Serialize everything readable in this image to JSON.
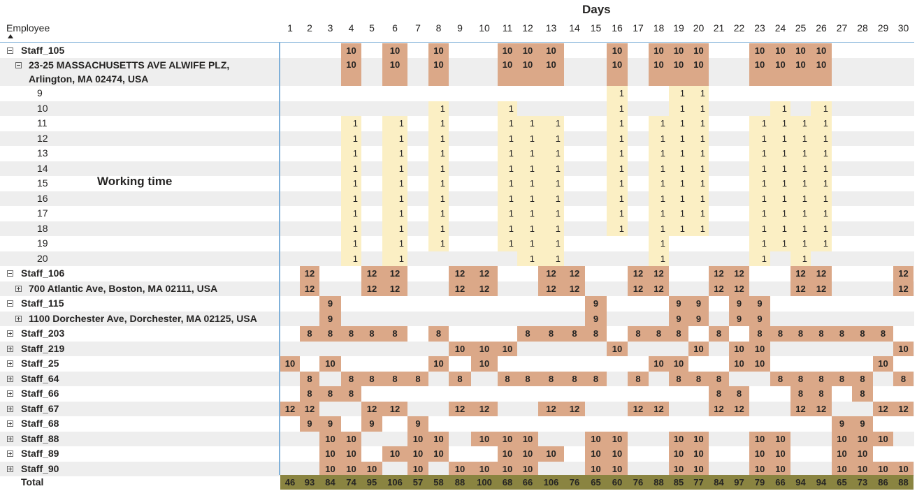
{
  "title": "Days",
  "employee_header": "Employee",
  "annotation": "Working time",
  "days": [
    "1",
    "2",
    "3",
    "4",
    "5",
    "6",
    "7",
    "8",
    "9",
    "10",
    "11",
    "12",
    "13",
    "14",
    "15",
    "16",
    "17",
    "18",
    "19",
    "20",
    "21",
    "22",
    "23",
    "24",
    "25",
    "26",
    "27",
    "28",
    "29",
    "30"
  ],
  "colors": {
    "hours_cell": "#dba888",
    "hour_mark_cell": "#fbefc4",
    "total_cell": "#8a8441",
    "header_line": "#7fb0d9",
    "row_shade": "#eeeeee"
  },
  "rows": [
    {
      "label": "Staff_105",
      "level": 0,
      "toggle": "minus",
      "bold": true,
      "style": "big",
      "values": {
        "4": 10,
        "6": 10,
        "8": 10,
        "11": 10,
        "12": 10,
        "13": 10,
        "16": 10,
        "18": 10,
        "19": 10,
        "20": 10,
        "23": 10,
        "24": 10,
        "25": 10,
        "26": 10
      }
    },
    {
      "label": "23-25 MASSACHUSETTS AVE ALWIFE PLZ,",
      "label2": "Arlington, MA 02474, USA",
      "level": 1,
      "toggle": "minus",
      "bold": true,
      "style": "big",
      "tall": true,
      "values": {
        "4": 10,
        "6": 10,
        "8": 10,
        "11": 10,
        "12": 10,
        "13": 10,
        "16": 10,
        "18": 10,
        "19": 10,
        "20": 10,
        "23": 10,
        "24": 10,
        "25": 10,
        "26": 10
      }
    },
    {
      "label": "9",
      "level": 2,
      "style": "small",
      "values": {
        "16": 1,
        "19": 1,
        "20": 1
      }
    },
    {
      "label": "10",
      "level": 2,
      "style": "small",
      "values": {
        "8": 1,
        "11": 1,
        "16": 1,
        "19": 1,
        "20": 1,
        "24": 1,
        "26": 1
      }
    },
    {
      "label": "11",
      "level": 2,
      "style": "small",
      "values": {
        "4": 1,
        "6": 1,
        "8": 1,
        "11": 1,
        "12": 1,
        "13": 1,
        "16": 1,
        "18": 1,
        "19": 1,
        "20": 1,
        "23": 1,
        "24": 1,
        "25": 1,
        "26": 1
      }
    },
    {
      "label": "12",
      "level": 2,
      "style": "small",
      "values": {
        "4": 1,
        "6": 1,
        "8": 1,
        "11": 1,
        "12": 1,
        "13": 1,
        "16": 1,
        "18": 1,
        "19": 1,
        "20": 1,
        "23": 1,
        "24": 1,
        "25": 1,
        "26": 1
      }
    },
    {
      "label": "13",
      "level": 2,
      "style": "small",
      "values": {
        "4": 1,
        "6": 1,
        "8": 1,
        "11": 1,
        "12": 1,
        "13": 1,
        "16": 1,
        "18": 1,
        "19": 1,
        "20": 1,
        "23": 1,
        "24": 1,
        "25": 1,
        "26": 1
      }
    },
    {
      "label": "14",
      "level": 2,
      "style": "small",
      "values": {
        "4": 1,
        "6": 1,
        "8": 1,
        "11": 1,
        "12": 1,
        "13": 1,
        "16": 1,
        "18": 1,
        "19": 1,
        "20": 1,
        "23": 1,
        "24": 1,
        "25": 1,
        "26": 1
      }
    },
    {
      "label": "15",
      "level": 2,
      "style": "small",
      "values": {
        "4": 1,
        "6": 1,
        "8": 1,
        "11": 1,
        "12": 1,
        "13": 1,
        "16": 1,
        "18": 1,
        "19": 1,
        "20": 1,
        "23": 1,
        "24": 1,
        "25": 1,
        "26": 1
      }
    },
    {
      "label": "16",
      "level": 2,
      "style": "small",
      "values": {
        "4": 1,
        "6": 1,
        "8": 1,
        "11": 1,
        "12": 1,
        "13": 1,
        "16": 1,
        "18": 1,
        "19": 1,
        "20": 1,
        "23": 1,
        "24": 1,
        "25": 1,
        "26": 1
      }
    },
    {
      "label": "17",
      "level": 2,
      "style": "small",
      "values": {
        "4": 1,
        "6": 1,
        "8": 1,
        "11": 1,
        "12": 1,
        "13": 1,
        "16": 1,
        "18": 1,
        "19": 1,
        "20": 1,
        "23": 1,
        "24": 1,
        "25": 1,
        "26": 1
      }
    },
    {
      "label": "18",
      "level": 2,
      "style": "small",
      "values": {
        "4": 1,
        "6": 1,
        "8": 1,
        "11": 1,
        "12": 1,
        "13": 1,
        "16": 1,
        "18": 1,
        "19": 1,
        "20": 1,
        "23": 1,
        "24": 1,
        "25": 1,
        "26": 1
      }
    },
    {
      "label": "19",
      "level": 2,
      "style": "small",
      "values": {
        "4": 1,
        "6": 1,
        "8": 1,
        "11": 1,
        "12": 1,
        "13": 1,
        "18": 1,
        "23": 1,
        "24": 1,
        "25": 1,
        "26": 1
      }
    },
    {
      "label": "20",
      "level": 2,
      "style": "small",
      "values": {
        "4": 1,
        "6": 1,
        "12": 1,
        "13": 1,
        "18": 1,
        "23": 1,
        "25": 1
      }
    },
    {
      "label": "Staff_106",
      "level": 0,
      "toggle": "minus",
      "bold": true,
      "style": "big",
      "values": {
        "2": 12,
        "5": 12,
        "6": 12,
        "9": 12,
        "10": 12,
        "13": 12,
        "14": 12,
        "17": 12,
        "18": 12,
        "21": 12,
        "22": 12,
        "25": 12,
        "26": 12,
        "30": 12
      }
    },
    {
      "label": "700 Atlantic Ave, Boston, MA 02111, USA",
      "level": 1,
      "toggle": "plus",
      "bold": true,
      "style": "big",
      "values": {
        "2": 12,
        "5": 12,
        "6": 12,
        "9": 12,
        "10": 12,
        "13": 12,
        "14": 12,
        "17": 12,
        "18": 12,
        "21": 12,
        "22": 12,
        "25": 12,
        "26": 12,
        "30": 12
      }
    },
    {
      "label": "Staff_115",
      "level": 0,
      "toggle": "minus",
      "bold": true,
      "style": "big",
      "values": {
        "3": 9,
        "15": 9,
        "19": 9,
        "20": 9,
        "22": 9,
        "23": 9
      }
    },
    {
      "label": "1100 Dorchester Ave, Dorchester, MA 02125, USA",
      "level": 1,
      "toggle": "plus",
      "bold": true,
      "style": "big",
      "values": {
        "3": 9,
        "15": 9,
        "19": 9,
        "20": 9,
        "22": 9,
        "23": 9
      }
    },
    {
      "label": "Staff_203",
      "level": 0,
      "toggle": "plus",
      "bold": true,
      "style": "big",
      "values": {
        "2": 8,
        "3": 8,
        "4": 8,
        "5": 8,
        "6": 8,
        "8": 8,
        "12": 8,
        "13": 8,
        "14": 8,
        "15": 8,
        "17": 8,
        "18": 8,
        "19": 8,
        "21": 8,
        "23": 8,
        "24": 8,
        "25": 8,
        "26": 8,
        "27": 8,
        "28": 8,
        "29": 8
      }
    },
    {
      "label": "Staff_219",
      "level": 0,
      "toggle": "plus",
      "bold": true,
      "style": "big",
      "values": {
        "9": 10,
        "10": 10,
        "11": 10,
        "16": 10,
        "20": 10,
        "22": 10,
        "23": 10,
        "30": 10
      }
    },
    {
      "label": "Staff_25",
      "level": 0,
      "toggle": "plus",
      "bold": true,
      "style": "big",
      "values": {
        "1": 10,
        "3": 10,
        "8": 10,
        "10": 10,
        "18": 10,
        "19": 10,
        "22": 10,
        "23": 10,
        "29": 10
      }
    },
    {
      "label": "Staff_64",
      "level": 0,
      "toggle": "plus",
      "bold": true,
      "style": "big",
      "values": {
        "2": 8,
        "4": 8,
        "5": 8,
        "6": 8,
        "7": 8,
        "9": 8,
        "11": 8,
        "12": 8,
        "13": 8,
        "14": 8,
        "15": 8,
        "17": 8,
        "19": 8,
        "20": 8,
        "21": 8,
        "24": 8,
        "25": 8,
        "26": 8,
        "27": 8,
        "28": 8,
        "30": 8
      }
    },
    {
      "label": "Staff_66",
      "level": 0,
      "toggle": "plus",
      "bold": true,
      "style": "big",
      "values": {
        "2": 8,
        "3": 8,
        "4": 8,
        "21": 8,
        "22": 8,
        "25": 8,
        "26": 8,
        "28": 8
      }
    },
    {
      "label": "Staff_67",
      "level": 0,
      "toggle": "plus",
      "bold": true,
      "style": "big",
      "values": {
        "1": 12,
        "2": 12,
        "5": 12,
        "6": 12,
        "9": 12,
        "10": 12,
        "13": 12,
        "14": 12,
        "17": 12,
        "18": 12,
        "21": 12,
        "22": 12,
        "25": 12,
        "26": 12,
        "29": 12,
        "30": 12
      }
    },
    {
      "label": "Staff_68",
      "level": 0,
      "toggle": "plus",
      "bold": true,
      "style": "big",
      "values": {
        "2": 9,
        "3": 9,
        "5": 9,
        "7": 9,
        "27": 9,
        "28": 9
      }
    },
    {
      "label": "Staff_88",
      "level": 0,
      "toggle": "plus",
      "bold": true,
      "style": "big",
      "values": {
        "3": 10,
        "4": 10,
        "7": 10,
        "8": 10,
        "10": 10,
        "11": 10,
        "12": 10,
        "15": 10,
        "16": 10,
        "19": 10,
        "20": 10,
        "23": 10,
        "24": 10,
        "27": 10,
        "28": 10,
        "29": 10
      }
    },
    {
      "label": "Staff_89",
      "level": 0,
      "toggle": "plus",
      "bold": true,
      "style": "big",
      "values": {
        "3": 10,
        "4": 10,
        "6": 10,
        "7": 10,
        "8": 10,
        "11": 10,
        "12": 10,
        "13": 10,
        "15": 10,
        "16": 10,
        "19": 10,
        "20": 10,
        "23": 10,
        "24": 10,
        "27": 10,
        "28": 10
      }
    },
    {
      "label": "Staff_90",
      "level": 0,
      "toggle": "plus",
      "bold": true,
      "style": "big",
      "values": {
        "3": 10,
        "4": 10,
        "5": 10,
        "7": 10,
        "9": 10,
        "10": 10,
        "11": 10,
        "12": 10,
        "15": 10,
        "16": 10,
        "19": 10,
        "20": 10,
        "23": 10,
        "24": 10,
        "27": 10,
        "28": 10,
        "29": 10,
        "30": 10
      }
    }
  ],
  "total": {
    "label": "Total",
    "values": [
      "46",
      "93",
      "84",
      "74",
      "95",
      "106",
      "57",
      "58",
      "88",
      "100",
      "68",
      "66",
      "106",
      "76",
      "65",
      "60",
      "76",
      "88",
      "85",
      "77",
      "84",
      "97",
      "79",
      "66",
      "94",
      "94",
      "65",
      "73",
      "86",
      "88"
    ]
  }
}
